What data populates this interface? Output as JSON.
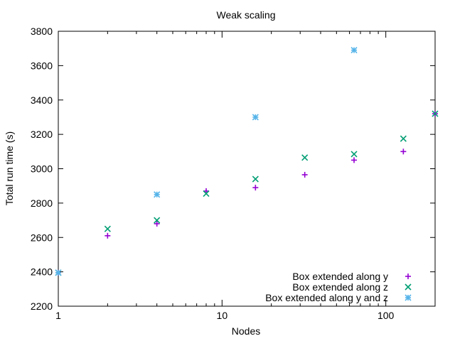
{
  "chart_data": {
    "type": "scatter",
    "title": "Weak scaling",
    "xlabel": "Nodes",
    "ylabel": "Total run time (s)",
    "xscale": "log",
    "xlim": [
      1,
      200
    ],
    "ylim": [
      2200,
      3800
    ],
    "xticks": [
      1,
      10,
      100
    ],
    "xtick_labels": [
      "1",
      "10",
      "100"
    ],
    "yticks": [
      2200,
      2400,
      2600,
      2800,
      3000,
      3200,
      3400,
      3600,
      3800
    ],
    "ytick_labels": [
      "2200",
      "2400",
      "2600",
      "2800",
      "3000",
      "3200",
      "3400",
      "3600",
      "3800"
    ],
    "grid": false,
    "legend_position": "bottom-right",
    "series": [
      {
        "name": "Box extended along y",
        "marker": "plus",
        "color": "#9400d3",
        "points": [
          {
            "x": 1,
            "y": 2395
          },
          {
            "x": 2,
            "y": 2610
          },
          {
            "x": 4,
            "y": 2680
          },
          {
            "x": 8,
            "y": 2870
          },
          {
            "x": 16,
            "y": 2890
          },
          {
            "x": 32,
            "y": 2965
          },
          {
            "x": 64,
            "y": 3050
          },
          {
            "x": 128,
            "y": 3100
          },
          {
            "x": 200,
            "y": 3320
          }
        ]
      },
      {
        "name": "Box extended along z",
        "marker": "cross",
        "color": "#009e73",
        "points": [
          {
            "x": 1,
            "y": 2395
          },
          {
            "x": 2,
            "y": 2650
          },
          {
            "x": 4,
            "y": 2700
          },
          {
            "x": 8,
            "y": 2855
          },
          {
            "x": 16,
            "y": 2940
          },
          {
            "x": 32,
            "y": 3065
          },
          {
            "x": 64,
            "y": 3085
          },
          {
            "x": 128,
            "y": 3175
          },
          {
            "x": 200,
            "y": 3320
          }
        ]
      },
      {
        "name": "Box extended along y and z",
        "marker": "star",
        "color": "#56b4e9",
        "points": [
          {
            "x": 1,
            "y": 2395
          },
          {
            "x": 4,
            "y": 2850
          },
          {
            "x": 16,
            "y": 3300
          },
          {
            "x": 64,
            "y": 3690
          }
        ]
      }
    ]
  }
}
